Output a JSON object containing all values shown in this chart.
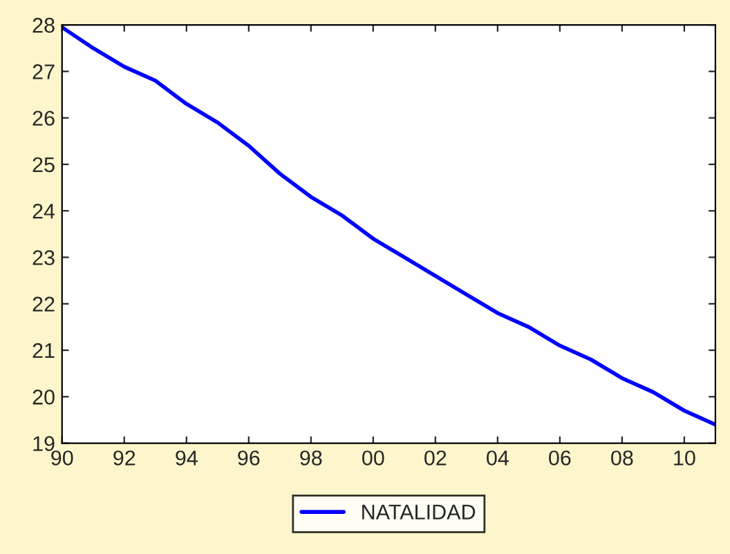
{
  "chart_data": {
    "type": "line",
    "x": [
      1990,
      1991,
      1992,
      1993,
      1994,
      1995,
      1996,
      1997,
      1998,
      1999,
      2000,
      2001,
      2002,
      2003,
      2004,
      2005,
      2006,
      2007,
      2008,
      2009,
      2010,
      2011
    ],
    "series": [
      {
        "name": "NATALIDAD",
        "color": "#0000ff",
        "values": [
          27.95,
          27.5,
          27.1,
          26.8,
          26.3,
          25.9,
          25.4,
          24.8,
          24.3,
          23.9,
          23.4,
          23.0,
          22.6,
          22.2,
          21.8,
          21.5,
          21.1,
          20.8,
          20.4,
          20.1,
          19.7,
          19.4
        ]
      }
    ],
    "xlim": [
      1990,
      2011
    ],
    "xticks": [
      {
        "value": 1990,
        "label": "90"
      },
      {
        "value": 1992,
        "label": "92"
      },
      {
        "value": 1994,
        "label": "94"
      },
      {
        "value": 1996,
        "label": "96"
      },
      {
        "value": 1998,
        "label": "98"
      },
      {
        "value": 2000,
        "label": "00"
      },
      {
        "value": 2002,
        "label": "02"
      },
      {
        "value": 2004,
        "label": "04"
      },
      {
        "value": 2006,
        "label": "06"
      },
      {
        "value": 2008,
        "label": "08"
      },
      {
        "value": 2010,
        "label": "10"
      }
    ],
    "ylim": [
      19,
      28
    ],
    "yticks": [
      19,
      20,
      21,
      22,
      23,
      24,
      25,
      26,
      27,
      28
    ],
    "grid": false,
    "legend": "bottom",
    "line_style": "solid",
    "marker": "none"
  }
}
